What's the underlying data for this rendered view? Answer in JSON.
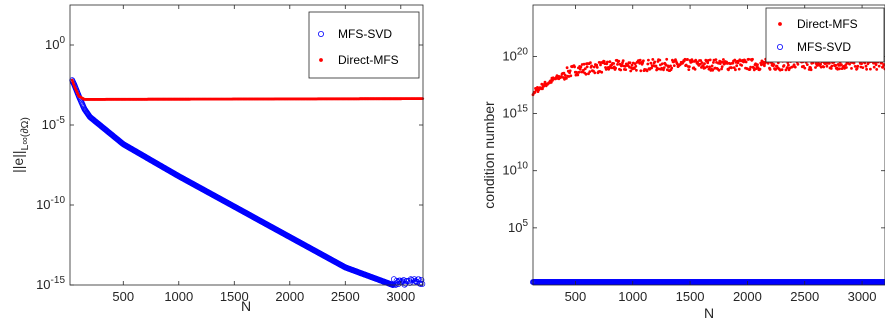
{
  "chart_data": [
    {
      "type": "scatter",
      "xlabel": "N",
      "ylabel": "||e||L∞(∂Ω)",
      "ylabel_main": "||e||",
      "ylabel_sub": "L∞(∂Ω)",
      "yscale": "log",
      "xlim": [
        20,
        3200
      ],
      "ylim_exp": [
        -15,
        2.5
      ],
      "x_ticks": [
        500,
        1000,
        1500,
        2000,
        2500,
        3000
      ],
      "x_tick_labels": [
        "500",
        "1000",
        "1500",
        "2000",
        "2500",
        "3000"
      ],
      "y_ticks_exp": [
        0,
        -5,
        -10,
        -15
      ],
      "y_tick_base": "10",
      "y_tick_exponents": [
        "0",
        "-5",
        "-10",
        "-15"
      ],
      "legend": {
        "placement": "top-right",
        "entries": [
          {
            "label": "MFS-SVD",
            "marker": "open-circle",
            "color": "#0000ff"
          },
          {
            "label": "Direct-MFS",
            "marker": "dot",
            "color": "#ff0000"
          }
        ]
      },
      "series": [
        {
          "name": "MFS-SVD",
          "color": "#0000ff",
          "marker": "open-circle",
          "curve_log10": {
            "x": [
              40,
              60,
              100,
              150,
              200,
              500,
              1000,
              1500,
              2000,
              2500,
              2930
            ],
            "y": [
              -2.2,
              -2.5,
              -3.2,
              -4.0,
              -4.5,
              -6.2,
              -8.2,
              -10.1,
              -12.0,
              -13.9,
              -15.0
            ]
          },
          "plateau": {
            "x_range": [
              2930,
              3200
            ],
            "log10_y": -14.85,
            "jitter": 0.25
          }
        },
        {
          "name": "Direct-MFS",
          "color": "#ff0000",
          "marker": "dot",
          "curve_log10": {
            "x": [
              40,
              60,
              100,
              150,
              3200
            ],
            "y": [
              -2.2,
              -2.6,
              -3.2,
              -3.4,
              -3.35
            ]
          }
        }
      ]
    },
    {
      "type": "scatter",
      "xlabel": "N",
      "ylabel": "condition number",
      "yscale": "log",
      "xlim": [
        130,
        3200
      ],
      "ylim_exp": [
        0,
        24.5
      ],
      "x_ticks": [
        500,
        1000,
        1500,
        2000,
        2500,
        3000
      ],
      "x_tick_labels": [
        "500",
        "1000",
        "1500",
        "2000",
        "2500",
        "3000"
      ],
      "y_ticks_exp": [
        20,
        15,
        10,
        5
      ],
      "y_tick_base": "10",
      "y_tick_exponents": [
        "20",
        "15",
        "10",
        "5"
      ],
      "legend": {
        "placement": "top-right",
        "entries": [
          {
            "label": "Direct-MFS",
            "marker": "dot",
            "color": "#ff0000"
          },
          {
            "label": "MFS-SVD",
            "marker": "open-circle",
            "color": "#0000ff"
          }
        ]
      },
      "series": [
        {
          "name": "Direct-MFS",
          "color": "#ff0000",
          "marker": "dot",
          "curve_log10": {
            "x": [
              130,
              200,
              300,
              500,
              800,
              1200,
              3200
            ],
            "y": [
              16.8,
              17.3,
              17.9,
              18.8,
              19.1,
              19.2,
              19.3
            ]
          },
          "scatter_jitter": 0.5
        },
        {
          "name": "MFS-SVD",
          "color": "#0000ff",
          "marker": "open-circle",
          "curve_log10": {
            "x": [
              130,
              3200
            ],
            "y": [
              0.25,
              0.25
            ]
          }
        }
      ]
    }
  ]
}
